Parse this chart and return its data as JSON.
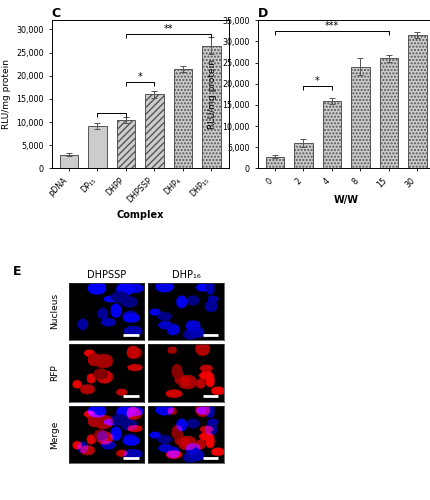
{
  "C_categories": [
    "pDNA",
    "DP₁₅",
    "DHPP",
    "DHPSSP",
    "DHP₄",
    "DHP₁₅"
  ],
  "C_values": [
    3000,
    9200,
    10500,
    16000,
    21500,
    26500
  ],
  "C_errors": [
    400,
    700,
    600,
    800,
    700,
    1800
  ],
  "C_ylabel": "RLU/mg protein",
  "C_xlabel": "Complex",
  "C_ylim": [
    0,
    32000
  ],
  "C_yticks": [
    0,
    5000,
    10000,
    15000,
    20000,
    25000,
    30000
  ],
  "C_title": "C",
  "C_hatches": [
    "",
    "",
    "/////",
    "/////",
    ".....",
    "....."
  ],
  "D_categories": [
    "0",
    "2",
    "4",
    "8",
    "15",
    "30"
  ],
  "D_values": [
    2800,
    6000,
    16000,
    24000,
    26000,
    31500
  ],
  "D_errors": [
    300,
    1000,
    700,
    2000,
    900,
    700
  ],
  "D_ylabel": "RLU/mg protein",
  "D_xlabel": "W/W",
  "D_ylim": [
    0,
    35000
  ],
  "D_yticks": [
    0,
    5000,
    10000,
    15000,
    20000,
    25000,
    30000,
    35000
  ],
  "D_title": "D",
  "D_hatches": [
    ".....",
    ".....",
    ".....",
    ".....",
    ".....",
    "....."
  ],
  "bar_facecolor": "#cccccc",
  "bar_edgecolor": "#555555",
  "E_title": "E",
  "E_col_labels": [
    "DHPSSP",
    "DHP₁₆"
  ],
  "E_row_labels": [
    "Nucleus",
    "RFP",
    "Merge"
  ]
}
